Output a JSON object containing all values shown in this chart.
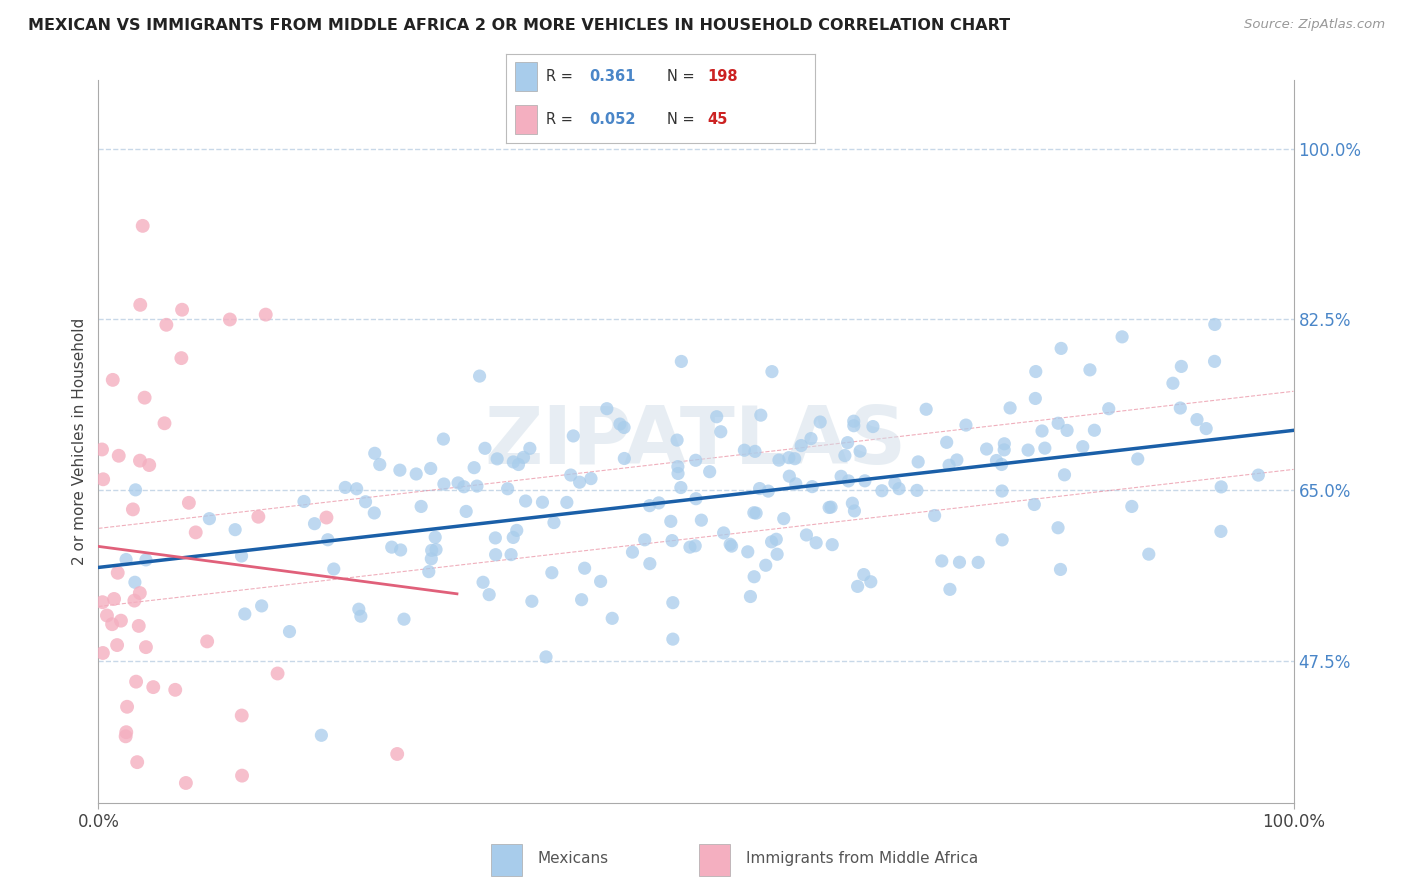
{
  "title": "MEXICAN VS IMMIGRANTS FROM MIDDLE AFRICA 2 OR MORE VEHICLES IN HOUSEHOLD CORRELATION CHART",
  "source": "Source: ZipAtlas.com",
  "ylabel": "2 or more Vehicles in Household",
  "xlim": [
    0,
    100
  ],
  "ylim": [
    33,
    107
  ],
  "ytick_vals": [
    47.5,
    65.0,
    82.5,
    100.0
  ],
  "ytick_labels": [
    "47.5%",
    "65.0%",
    "82.5%",
    "100.0%"
  ],
  "xtick_vals": [
    0,
    100
  ],
  "xtick_labels": [
    "0.0%",
    "100.0%"
  ],
  "blue_fill": "#a8cceb",
  "blue_line": "#1a5fa8",
  "pink_fill": "#f4afc0",
  "pink_line": "#e0607a",
  "text_blue": "#4a86c8",
  "text_dark": "#555555",
  "R_blue": 0.361,
  "N_blue": 198,
  "R_pink": 0.052,
  "N_pink": 45,
  "watermark": "ZIPATLAS",
  "grid_color": "#c8d8e8",
  "seed_blue": 42,
  "seed_pink": 7
}
